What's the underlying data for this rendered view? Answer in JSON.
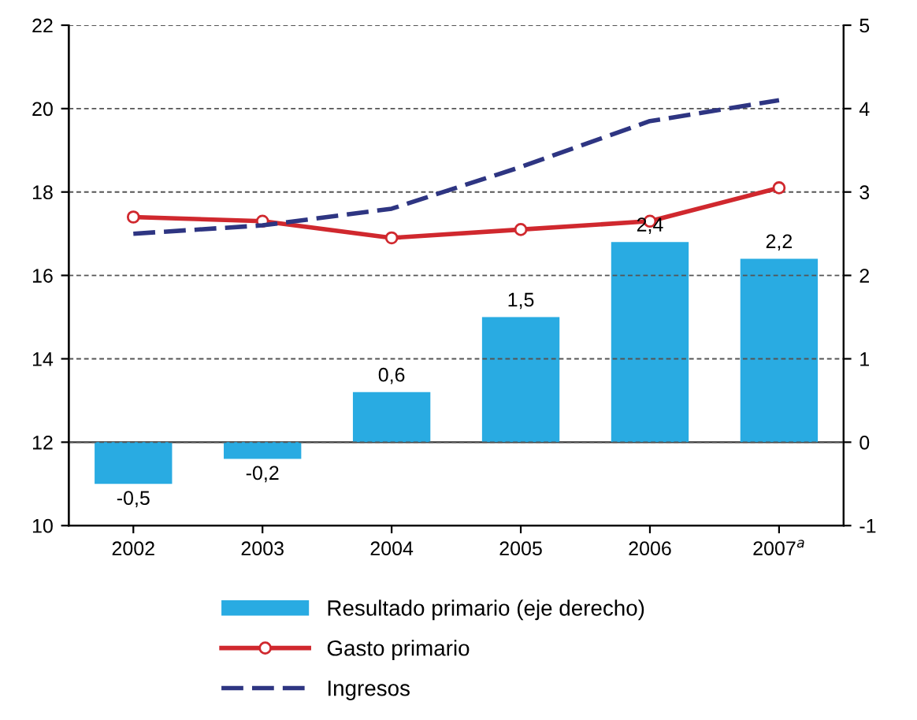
{
  "chart_data": {
    "type": "bar",
    "categories": [
      "2002",
      "2003",
      "2004",
      "2005",
      "2006",
      "2007$^{a}$"
    ],
    "series": [
      {
        "name": "Resultado primario (eje derecho)",
        "axis": "y2",
        "color": "#29abe2",
        "values": [
          -0.5,
          -0.2,
          0.6,
          1.5,
          2.4,
          2.2
        ],
        "value_labels": [
          "-0,5",
          "-0,2",
          "0,6",
          "1,5",
          "2,4",
          "2,2"
        ]
      },
      {
        "name": "Gasto primario",
        "type": "line",
        "color": "#d0282e",
        "marker": "circle",
        "line_style": "solid",
        "values": [
          17.4,
          17.3,
          16.9,
          17.1,
          17.3,
          18.1
        ]
      },
      {
        "name": "Ingresos",
        "type": "line",
        "color": "#2e3582",
        "marker": "none",
        "line_style": "dashed",
        "values": [
          17.0,
          17.2,
          17.6,
          18.6,
          19.7,
          20.2
        ]
      }
    ],
    "ylim": [
      10,
      22
    ],
    "yticks": [
      10,
      12,
      14,
      16,
      18,
      20,
      22
    ],
    "y2lim": [
      -1,
      5
    ],
    "y2ticks": [
      -1,
      0,
      1,
      2,
      3,
      4,
      5
    ],
    "grid": "y",
    "legend": "bottom"
  }
}
